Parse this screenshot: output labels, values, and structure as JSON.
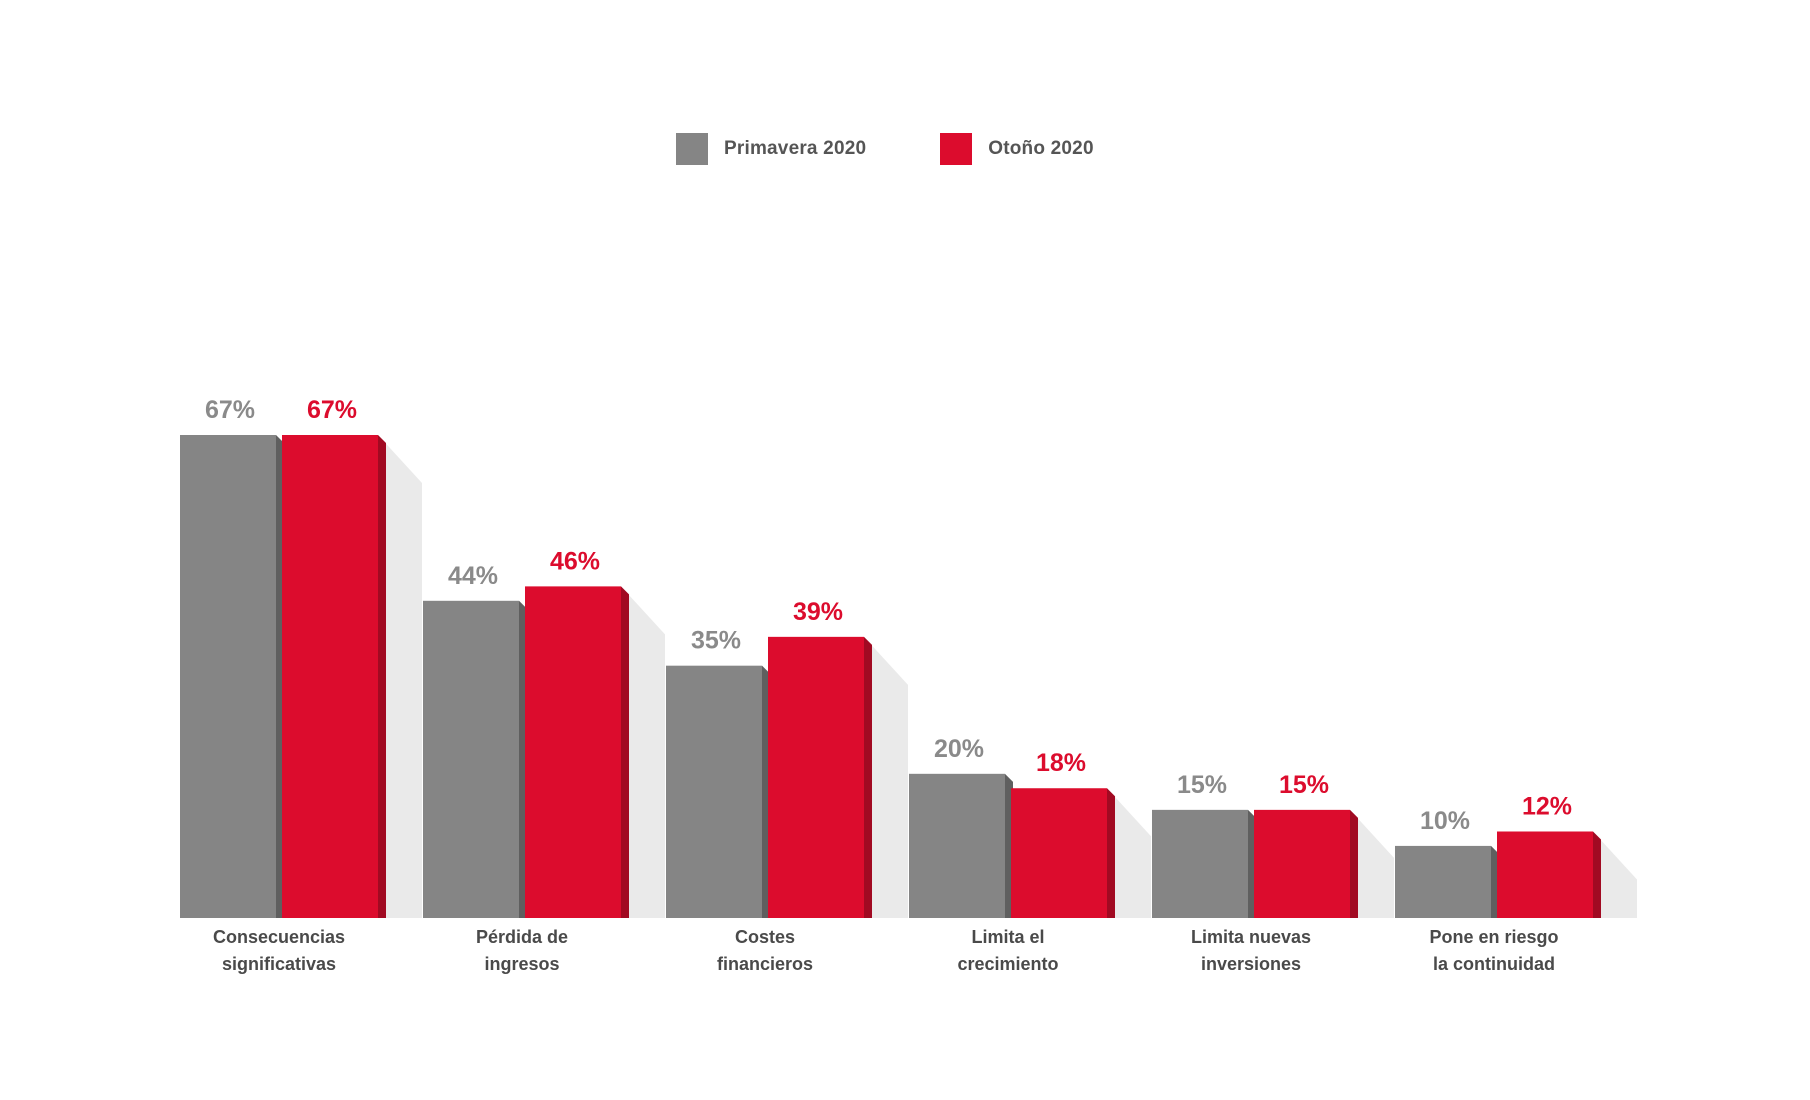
{
  "colors": {
    "primavera": "#858585",
    "primavera_side": "#5f5f5f",
    "primavera_label": "#8a8a8a",
    "otono": "#dc0c2d",
    "otono_side": "#a10a22",
    "otono_label": "#dc0c2d",
    "shadow": "#d9d9d9"
  },
  "legend": [
    {
      "label": "Primavera 2020",
      "color_key": "primavera"
    },
    {
      "label": "Otoño 2020",
      "color_key": "otono"
    }
  ],
  "chart_data": {
    "type": "bar",
    "categories": [
      "Consecuencias\nsignificativas",
      "Pérdida de\ningresos",
      "Costes\nfinancieros",
      "Limita el\ncrecimiento",
      "Limita nuevas\ninversiones",
      "Pone en riesgo\nla continuidad"
    ],
    "series": [
      {
        "name": "Primavera 2020",
        "values": [
          67,
          44,
          35,
          20,
          15,
          10
        ],
        "labels": [
          "67%",
          "44%",
          "35%",
          "20%",
          "15%",
          "10%"
        ]
      },
      {
        "name": "Otoño 2020",
        "values": [
          67,
          46,
          39,
          18,
          15,
          12
        ],
        "labels": [
          "67%",
          "46%",
          "39%",
          "18%",
          "15%",
          "12%"
        ]
      }
    ],
    "ylim": [
      0,
      67
    ],
    "grid": false,
    "legend_position": "top-center",
    "title": "",
    "xlabel": "",
    "ylabel": ""
  }
}
